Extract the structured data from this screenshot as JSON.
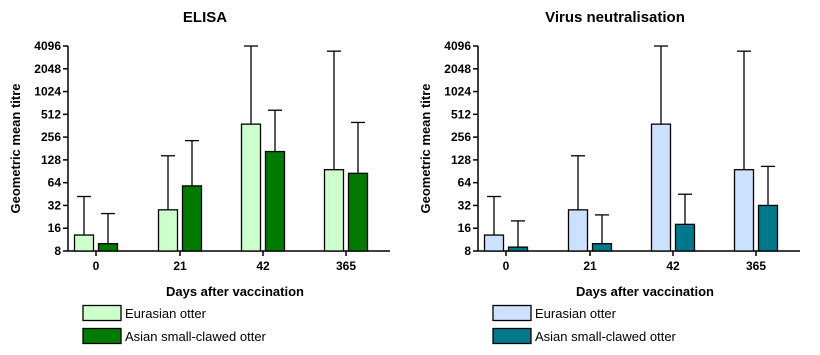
{
  "chart_data": [
    {
      "type": "bar",
      "title": "ELISA",
      "xlabel": "Days after vaccination",
      "ylabel": "Geometric mean titre",
      "yscale": "log2",
      "ylim": [
        8,
        4096
      ],
      "yticks": [
        "8",
        "16",
        "32",
        "64",
        "128",
        "256",
        "512",
        "1024",
        "2048",
        "4096"
      ],
      "categories": [
        "0",
        "21",
        "42",
        "365"
      ],
      "error_bars": "upper",
      "series": [
        {
          "name": "Eurasian otter",
          "color": "#ccffcc",
          "values": [
            13,
            28,
            380,
            95
          ],
          "upper": [
            42,
            145,
            4096,
            3500
          ]
        },
        {
          "name": "Asian small-clawed otter",
          "color": "#007a00",
          "values": [
            10,
            58,
            165,
            85
          ],
          "upper": [
            25,
            230,
            580,
            400
          ]
        }
      ],
      "legend_position": "bottom-left"
    },
    {
      "type": "bar",
      "title": "Virus neutralisation",
      "xlabel": "Days after vaccination",
      "ylabel": "Geometric mean titre",
      "yscale": "log2",
      "ylim": [
        8,
        4096
      ],
      "yticks": [
        "8",
        "16",
        "32",
        "64",
        "128",
        "256",
        "512",
        "1024",
        "2048",
        "4096"
      ],
      "categories": [
        "0",
        "21",
        "42",
        "365"
      ],
      "error_bars": "upper",
      "series": [
        {
          "name": "Eurasian otter",
          "color": "#cce0ff",
          "values": [
            13,
            28,
            380,
            95
          ],
          "upper": [
            42,
            145,
            4096,
            3500
          ]
        },
        {
          "name": "Asian small-clawed otter",
          "color": "#00788c",
          "values": [
            9,
            10,
            18,
            32
          ],
          "upper": [
            20,
            24,
            45,
            105
          ]
        }
      ],
      "legend_position": "bottom-left"
    }
  ]
}
